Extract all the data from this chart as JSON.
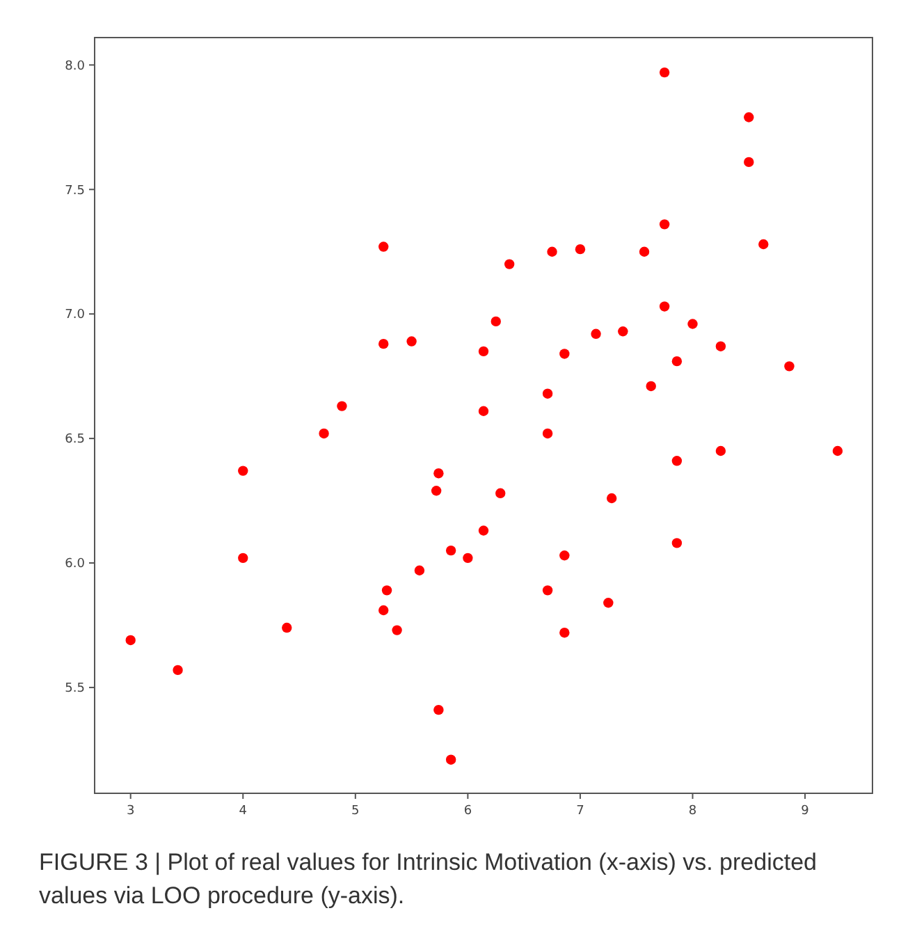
{
  "chart_data": {
    "type": "scatter",
    "color": "#ff0000",
    "marker": "circle",
    "grid": false,
    "x": [
      3.0,
      3.42,
      4.0,
      4.0,
      4.39,
      4.72,
      4.88,
      5.25,
      5.25,
      5.5,
      5.25,
      5.28,
      5.37,
      5.57,
      5.72,
      5.74,
      5.74,
      5.85,
      5.85,
      6.0,
      6.14,
      6.14,
      6.14,
      6.25,
      6.29,
      6.37,
      6.71,
      6.71,
      6.71,
      6.75,
      6.86,
      6.86,
      6.86,
      7.0,
      7.14,
      7.25,
      7.28,
      7.38,
      7.57,
      7.63,
      7.75,
      7.75,
      7.75,
      7.86,
      7.86,
      7.86,
      8.0,
      8.25,
      8.25,
      8.5,
      8.5,
      8.63,
      8.86,
      9.29
    ],
    "values": [
      5.69,
      5.57,
      6.37,
      6.02,
      5.74,
      6.52,
      6.63,
      7.27,
      6.88,
      6.89,
      5.81,
      5.89,
      5.73,
      5.97,
      6.29,
      6.36,
      5.41,
      5.21,
      6.05,
      6.02,
      6.13,
      6.61,
      6.85,
      6.97,
      6.28,
      7.2,
      6.68,
      6.52,
      5.89,
      7.25,
      6.84,
      6.03,
      5.72,
      7.26,
      6.92,
      5.84,
      6.26,
      6.93,
      7.25,
      6.71,
      7.97,
      7.36,
      7.03,
      6.81,
      6.41,
      6.08,
      6.96,
      6.87,
      6.45,
      7.79,
      7.61,
      7.28,
      6.79,
      6.45
    ],
    "xlim": [
      2.68,
      9.6
    ],
    "ylim": [
      5.075,
      8.11
    ],
    "xticks": [
      3,
      4,
      5,
      6,
      7,
      8,
      9
    ],
    "yticks": [
      {
        "value": 5.5,
        "label": "5.5"
      },
      {
        "value": 6.0,
        "label": "6.0"
      },
      {
        "value": 6.5,
        "label": "6.5"
      },
      {
        "value": 7.0,
        "label": "7.0"
      },
      {
        "value": 7.5,
        "label": "7.5"
      },
      {
        "value": 8.0,
        "label": "8.0"
      }
    ],
    "annotations": [
      "FIGURE 3 | Plot of real values for Intrinsic Motivation (x-axis) vs. predicted values via LOO procedure (y-axis)."
    ]
  }
}
